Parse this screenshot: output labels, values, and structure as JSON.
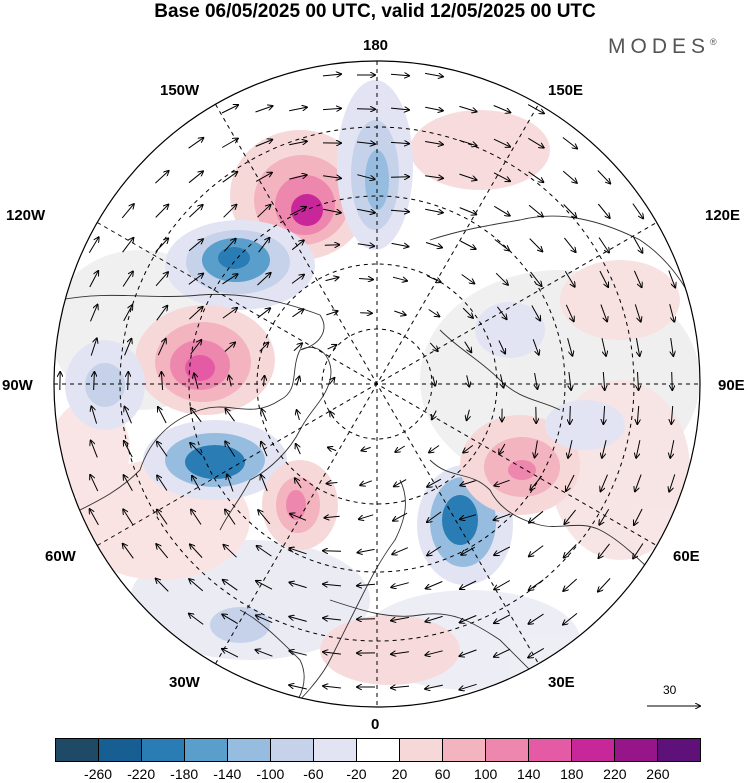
{
  "title": "Base 06/05/2025 00 UTC, valid 12/05/2025 00 UTC",
  "brand": "MODES",
  "brand_mark": "®",
  "longitude_labels": {
    "n180": "180",
    "w150": "150W",
    "e150": "150E",
    "w120": "120W",
    "e120": "120E",
    "w90": "90W",
    "e90": "90E",
    "w60": "60W",
    "e60": "60E",
    "w30": "30W",
    "e30": "30E",
    "zero": "0"
  },
  "reference_vector_label": "30",
  "colorbar": {
    "colors": [
      "#1e4a66",
      "#175e93",
      "#2a7cb4",
      "#5a9fcc",
      "#96bde0",
      "#c5d2ea",
      "#e3e4f3",
      "#ffffff",
      "#f7d8d9",
      "#f3b4bf",
      "#ee87ad",
      "#e45aa5",
      "#c8279a",
      "#96168a",
      "#5e1178"
    ],
    "labels": [
      "-260",
      "-220",
      "-180",
      "-140",
      "-100",
      "-60",
      "-20",
      "20",
      "60",
      "100",
      "140",
      "180",
      "220",
      "260"
    ]
  },
  "field_anomalies": [
    {
      "sign": "positive",
      "intensity": 4,
      "near": "150W-180"
    },
    {
      "sign": "negative",
      "intensity": 3,
      "near": "120W-150W"
    },
    {
      "sign": "positive",
      "intensity": 4,
      "near": "90W-120W"
    },
    {
      "sign": "negative",
      "intensity": 3,
      "near": "60W-90W"
    },
    {
      "sign": "positive",
      "intensity": 2,
      "near": "30W-60W"
    },
    {
      "sign": "negative",
      "intensity": 3,
      "near": "30E-60E"
    },
    {
      "sign": "positive",
      "intensity": 2,
      "near": "60E-90E"
    },
    {
      "sign": "negative",
      "intensity": 2,
      "near": "180"
    }
  ]
}
